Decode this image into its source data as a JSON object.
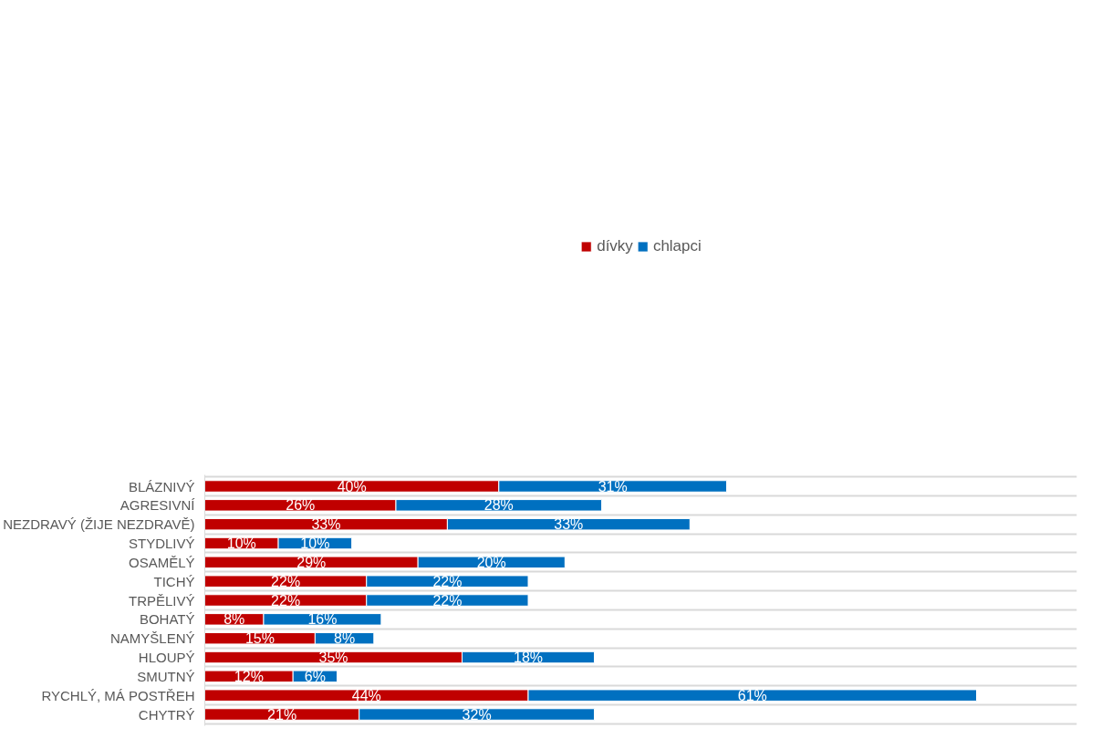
{
  "chart_data": {
    "type": "bar",
    "orientation": "horizontal",
    "stacked": true,
    "grid": "y",
    "legend": "top",
    "categories": [
      "BLÁZNIVÝ",
      "AGRESIVNÍ",
      "NEZDRAVÝ (ŽIJE NEZDRAVĚ)",
      "STYDLIVÝ",
      "OSAMĚLÝ",
      "TICHÝ",
      "TRPĚLIVÝ",
      "BOHATÝ",
      "NAMYŠLENÝ",
      "HLOUPÝ",
      "SMUTNÝ",
      "RYCHLÝ, MÁ POSTŘEH",
      "CHYTRÝ"
    ],
    "series": [
      {
        "name": "dívky",
        "color": "#c00000",
        "values": [
          40,
          26,
          33,
          10,
          29,
          22,
          22,
          8,
          15,
          35,
          12,
          44,
          21
        ],
        "value_labels": [
          "40%",
          "26%",
          "33%",
          "10%",
          "29%",
          "22%",
          "22%",
          "8%",
          "15%",
          "35%",
          "12%",
          "44%",
          "21%"
        ]
      },
      {
        "name": "chlapci",
        "color": "#0070c0",
        "values": [
          31,
          28,
          33,
          10,
          20,
          22,
          22,
          16,
          8,
          18,
          6,
          61,
          32
        ],
        "value_labels": [
          "31%",
          "28%",
          "33%",
          "10%",
          "20%",
          "22%",
          "22%",
          "16%",
          "8%",
          "18%",
          "6%",
          "61%",
          "32%"
        ]
      }
    ]
  }
}
